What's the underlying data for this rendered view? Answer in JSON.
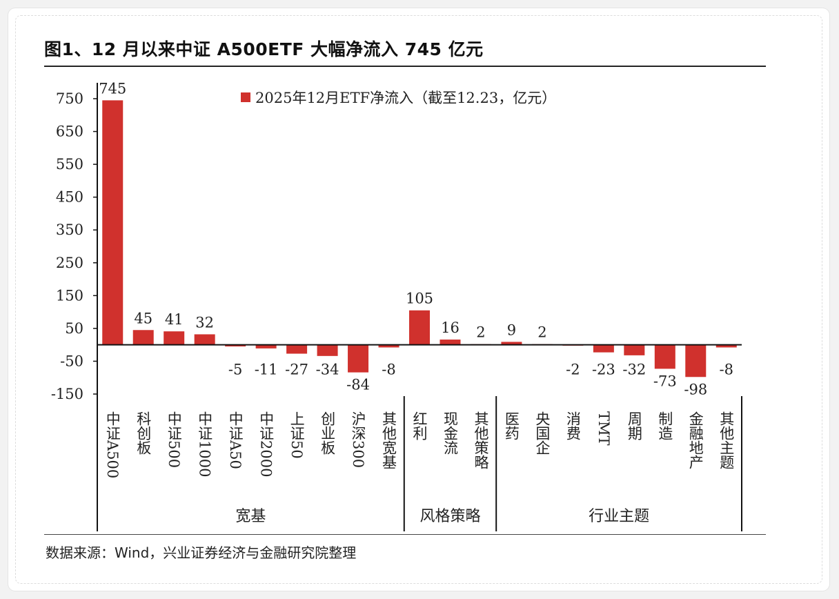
{
  "title": "图1、12 月以来中证 A500ETF 大幅净流入 745 亿元",
  "source": "数据来源：Wind，兴业证券经济与金融研究院整理",
  "colors": {
    "bar": "#d0312d",
    "axis": "#111111",
    "text": "#222222"
  },
  "chart_data": {
    "type": "bar",
    "title": "",
    "xlabel": "",
    "ylabel": "",
    "ylim": [
      -150,
      750
    ],
    "yticks": [
      750,
      650,
      550,
      450,
      350,
      250,
      150,
      50,
      -50,
      -150
    ],
    "legend": {
      "position": "top",
      "label": "2025年12月ETF净流入（截至12.23，亿元）"
    },
    "series": [
      {
        "name": "2025年12月ETF净流入（截至12.23，亿元）",
        "values": [
          745,
          45,
          41,
          32,
          -5,
          -11,
          -27,
          -34,
          -84,
          -8,
          105,
          16,
          2,
          9,
          2,
          -2,
          -23,
          -32,
          -73,
          -98,
          -8
        ]
      }
    ],
    "categories": [
      "中证A500",
      "科创板",
      "中证500",
      "中证1000",
      "中证A50",
      "中证2000",
      "上证50",
      "创业板",
      "沪深300",
      "其他宽基",
      "红利",
      "现金流",
      "其他策略",
      "医药",
      "央国企",
      "消费",
      "TMT",
      "周期",
      "制造",
      "金融地产",
      "其他主题"
    ],
    "data_labels": [
      "745",
      "45",
      "41",
      "32",
      "-5",
      "-11",
      "-27",
      "-34",
      "-84",
      "-8",
      "105",
      "16",
      "2",
      "9",
      "2",
      "-2",
      "-23",
      "-32",
      "-73",
      "-98",
      "-8"
    ],
    "groups": [
      {
        "label": "宽基",
        "count": 10
      },
      {
        "label": "风格策略",
        "count": 3
      },
      {
        "label": "行业主题",
        "count": 8
      }
    ]
  }
}
